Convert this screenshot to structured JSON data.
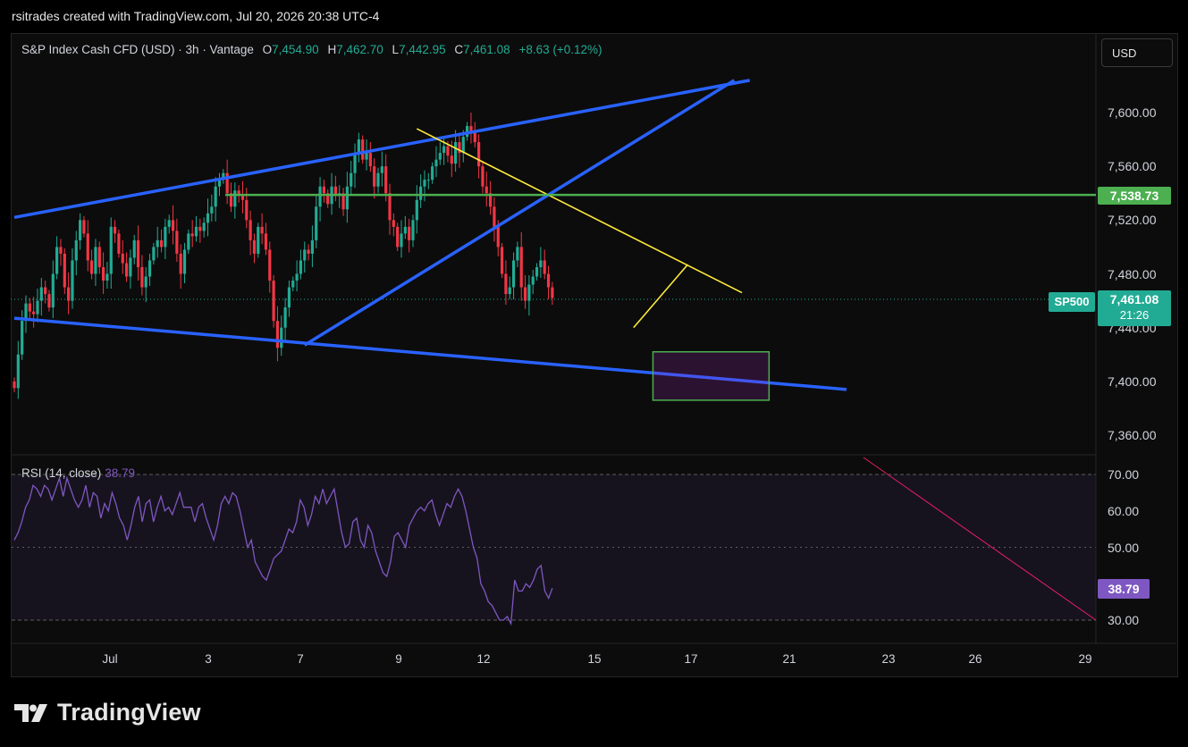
{
  "header": {
    "attribution": "rsitrades created with TradingView.com, Jul 20, 2026 20:38 UTC-4"
  },
  "legend": {
    "symbol": "S&P Index Cash CFD (USD) · 3h · Vantage",
    "open_label": "O",
    "open": "7,454.90",
    "high_label": "H",
    "high": "7,462.70",
    "low_label": "L",
    "low": "7,442.95",
    "close_label": "C",
    "close": "7,461.08",
    "change": "+8.63 (+0.12%)"
  },
  "currency_button": "USD",
  "rsi_legend": {
    "label": "RSI (14, close)",
    "value": "38.79"
  },
  "brand": {
    "name": "TradingView",
    "logo": "tradingview-logo-icon"
  },
  "price_tags": {
    "level": {
      "text": "7,538.73",
      "color": "#4caf50"
    },
    "last": {
      "symbol": "SP500",
      "price": "7,461.08",
      "countdown": "21:26",
      "color": "#22ab94"
    },
    "rsi": {
      "text": "38.79",
      "color": "#7e57c2"
    }
  },
  "colors": {
    "up": "#22ab94",
    "down": "#f23645",
    "channel": "#2962ff",
    "trend": "#ffeb3b",
    "level": "#4caf50",
    "rsi": "#7e57c2"
  },
  "chart_data": [
    {
      "type": "candlestick",
      "title": "S&P Index Cash CFD (USD) · 3h · Vantage",
      "y_ticks": [
        "7,360.00",
        "7,400.00",
        "7,440.00",
        "7,480.00",
        "7,520.00",
        "7,560.00",
        "7,600.00"
      ],
      "x_ticks": [
        "Jul",
        "3",
        "7",
        "9",
        "12",
        "15",
        "17",
        "21",
        "23",
        "26",
        "29"
      ],
      "ylim": [
        7335,
        7640
      ],
      "grid": false,
      "horizontal_level": 7538.73,
      "last_price": 7461.08,
      "approx_path_note_free": true,
      "closes": [
        7395,
        7420,
        7445,
        7458,
        7452,
        7450,
        7460,
        7470,
        7465,
        7455,
        7480,
        7500,
        7495,
        7470,
        7460,
        7490,
        7505,
        7520,
        7510,
        7490,
        7480,
        7500,
        7485,
        7475,
        7480,
        7515,
        7510,
        7495,
        7488,
        7478,
        7492,
        7505,
        7485,
        7470,
        7478,
        7490,
        7500,
        7505,
        7500,
        7515,
        7520,
        7512,
        7495,
        7480,
        7498,
        7510,
        7508,
        7515,
        7512,
        7518,
        7525,
        7530,
        7545,
        7550,
        7555,
        7540,
        7530,
        7542,
        7538,
        7535,
        7520,
        7505,
        7495,
        7515,
        7510,
        7498,
        7475,
        7445,
        7425,
        7440,
        7455,
        7470,
        7475,
        7480,
        7490,
        7498,
        7495,
        7505,
        7530,
        7545,
        7540,
        7532,
        7545,
        7538,
        7540,
        7528,
        7545,
        7555,
        7570,
        7580,
        7565,
        7570,
        7560,
        7545,
        7555,
        7560,
        7540,
        7520,
        7515,
        7500,
        7510,
        7515,
        7505,
        7520,
        7535,
        7545,
        7550,
        7550,
        7560,
        7565,
        7570,
        7575,
        7568,
        7562,
        7578,
        7570,
        7582,
        7590,
        7585,
        7578,
        7560,
        7545,
        7540,
        7530,
        7515,
        7500,
        7480,
        7465,
        7470,
        7490,
        7500,
        7470,
        7460,
        7472,
        7478,
        7485,
        7490,
        7480,
        7470,
        7462
      ],
      "annotations": {
        "upper_channel": [
          [
            0,
            7522
          ],
          [
            190,
            7624
          ]
        ],
        "lower_channel_a": [
          [
            0,
            7447
          ],
          [
            215,
            7394
          ]
        ],
        "lower_channel_b": [
          [
            75,
            7427
          ],
          [
            186,
            7624
          ]
        ],
        "falling_trendline": [
          [
            104,
            7588
          ],
          [
            188,
            7466
          ]
        ],
        "rising_trendline": [
          [
            160,
            7440
          ],
          [
            174,
            7487
          ]
        ],
        "target_box": {
          "x": [
            165,
            195
          ],
          "y": [
            7386,
            7422
          ]
        }
      }
    },
    {
      "type": "line",
      "title": "RSI (14, close)",
      "y_ticks": [
        "30.00",
        "50.00",
        "60.00",
        "70.00"
      ],
      "ylim": [
        28,
        72
      ],
      "bands": [
        30,
        50,
        70
      ],
      "last_value": 38.79,
      "values": [
        52,
        54,
        57,
        61,
        63,
        67,
        66,
        64,
        67,
        66,
        63,
        66,
        69,
        64,
        69,
        66,
        63,
        61,
        63,
        67,
        61,
        65,
        64,
        58,
        62,
        60,
        65,
        62,
        58,
        56,
        52,
        56,
        61,
        64,
        57,
        62,
        63,
        57,
        61,
        64,
        60,
        61,
        59,
        62,
        65,
        61,
        61,
        61,
        57,
        61,
        62,
        58,
        55,
        52,
        56,
        62,
        64,
        62,
        65,
        64,
        60,
        55,
        50,
        52,
        46,
        44,
        42,
        41,
        44,
        47,
        48,
        49,
        52,
        55,
        54,
        57,
        63,
        61,
        56,
        59,
        64,
        62,
        66,
        62,
        64,
        66,
        60,
        54,
        50,
        51,
        57,
        58,
        52,
        50,
        56,
        54,
        49,
        46,
        43,
        42,
        46,
        53,
        54,
        52,
        50,
        56,
        58,
        60,
        61,
        60,
        62,
        63,
        59,
        56,
        59,
        62,
        61,
        64,
        66,
        64,
        60,
        55,
        50,
        47,
        40,
        38,
        35,
        34,
        32,
        30,
        30,
        31,
        29,
        41,
        38,
        38,
        40,
        39,
        41,
        44,
        45,
        38,
        36,
        38.79
      ]
    }
  ]
}
